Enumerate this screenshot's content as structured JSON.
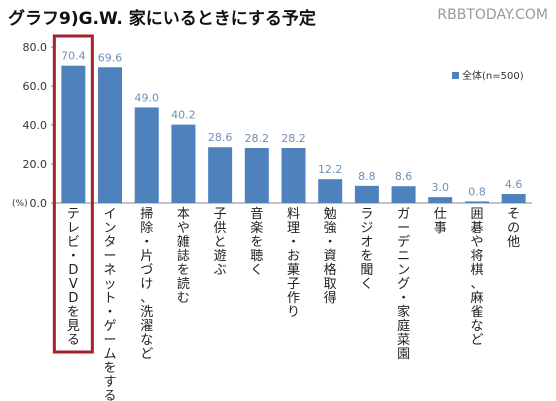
{
  "title": "グラフ9)G.W. 家にいるときにする予定",
  "watermark": "RBBTODAY.COM",
  "unit_label": "(%)",
  "colors": {
    "bar": "#4f81bd",
    "highlight": "#a3222b",
    "label": "#6f8fb3"
  },
  "chart_data": {
    "type": "bar",
    "categories": [
      "テレビ・DVDを見る",
      "インターネット・ゲームをする",
      "掃除・片づけ、洗濯など",
      "本や雑誌を読む",
      "子供と遊ぶ",
      "音楽を聴く",
      "料理・お菓子作り",
      "勉強・資格取得",
      "ラジオを聞く",
      "ガーデニング・家庭菜園",
      "仕事",
      "囲碁や将棋、麻雀など",
      "その他"
    ],
    "series": [
      {
        "name": "全体(n=500)",
        "values": [
          70.4,
          69.6,
          49.0,
          40.2,
          28.6,
          28.2,
          28.2,
          12.2,
          8.8,
          8.6,
          3.0,
          0.8,
          4.6
        ]
      }
    ],
    "value_labels": [
      "70.4",
      "69.6",
      "49.0",
      "40.2",
      "28.6",
      "28.2",
      "28.2",
      "12.2",
      "8.8",
      "8.6",
      "3.0",
      "0.8",
      "4.6"
    ],
    "ylim": [
      0,
      80
    ],
    "yticks": [
      "0.0",
      "20.0",
      "40.0",
      "60.0",
      "80.0"
    ],
    "grid": false,
    "legend_position": "top-right",
    "highlighted_category": "テレビ・DVDを見る"
  }
}
